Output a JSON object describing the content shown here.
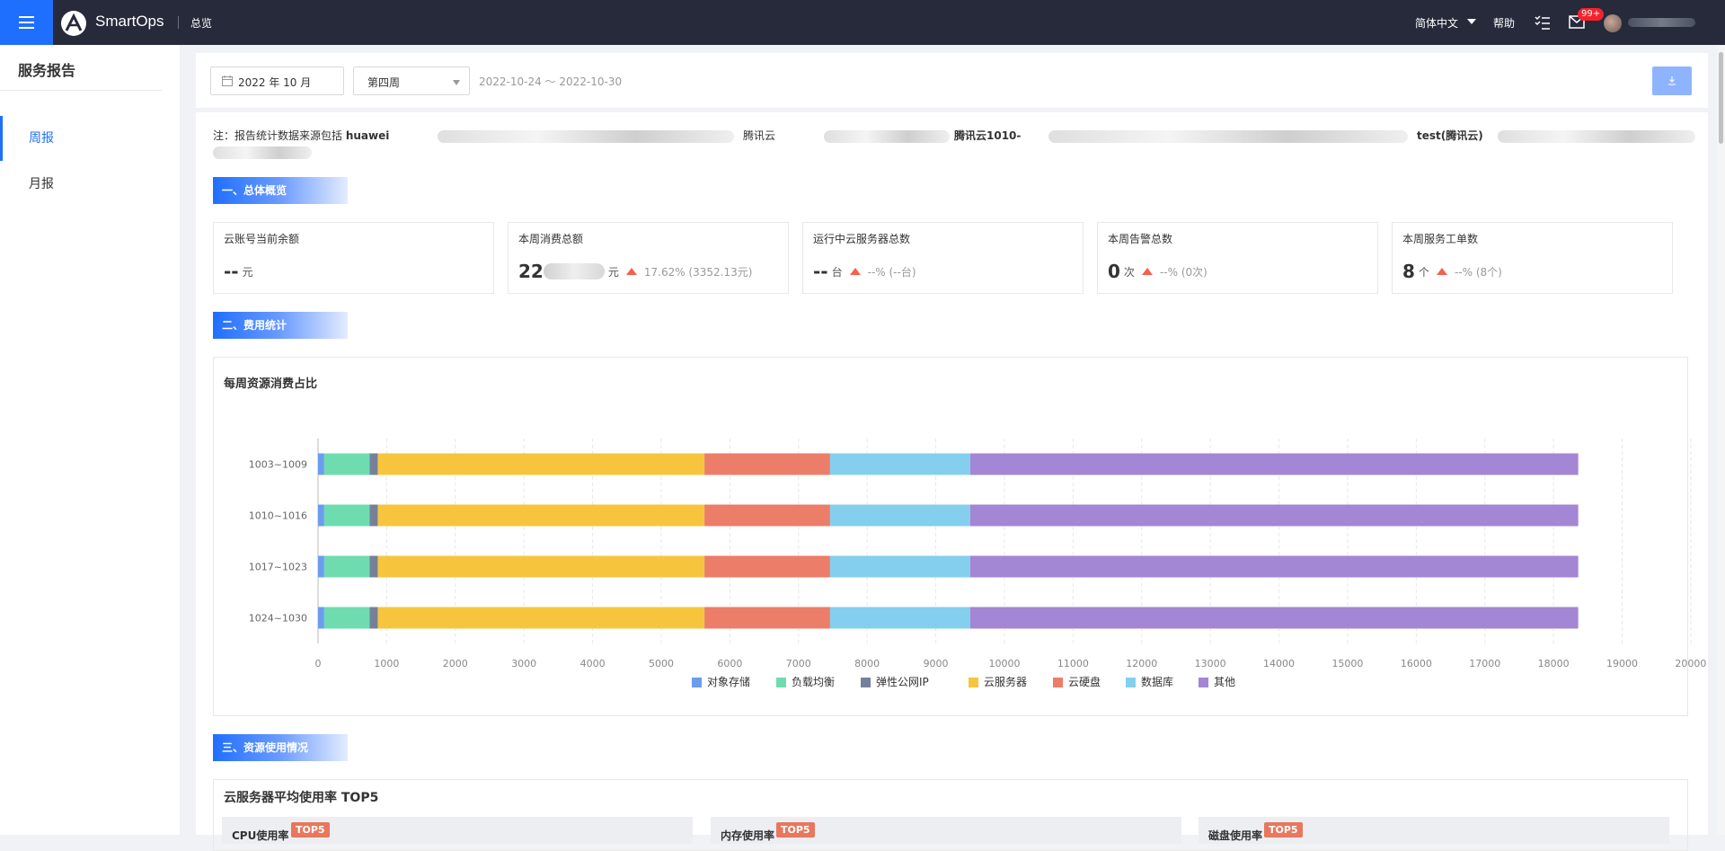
{
  "header": {
    "brand": "SmartOps",
    "nav_overview": "总览",
    "language": "简体中文",
    "help": "帮助",
    "notification_badge": "99+"
  },
  "sidebar": {
    "title": "服务报告",
    "items": [
      {
        "label": "周报",
        "active": true
      },
      {
        "label": "月报",
        "active": false
      }
    ]
  },
  "filters": {
    "month": "2022 年 10 月",
    "week": "第四周",
    "date_range": "2022-10-24 ～ 2022-10-30",
    "download_icon": "download-icon"
  },
  "note": {
    "prefix": "注：报告统计数据来源包括",
    "fragments": [
      "huawei",
      "腾讯云",
      "腾讯云1010-",
      "test(腾讯云)"
    ]
  },
  "sections": {
    "overview": "一、总体概览",
    "cost": "二、费用统计",
    "usage": "三、资源使用情况"
  },
  "stats": [
    {
      "label": "云账号当前余额",
      "value": "--",
      "unit": "元",
      "change": ""
    },
    {
      "label": "本周消费总额",
      "value": "22",
      "unit": "元",
      "change": "17.62% (3352.13元)"
    },
    {
      "label": "运行中云服务器总数",
      "value": "--",
      "unit": "台",
      "change": "--% (--台)"
    },
    {
      "label": "本周告警总数",
      "value": "0",
      "unit": "次",
      "change": "--% (0次)"
    },
    {
      "label": "本周服务工单数",
      "value": "8",
      "unit": "个",
      "change": "--% (8个)"
    }
  ],
  "chart_data": {
    "type": "bar",
    "orientation": "horizontal",
    "stacked": true,
    "title": "每周资源消费占比",
    "categories": [
      "1003~1009",
      "1010~1016",
      "1017~1023",
      "1024~1030"
    ],
    "series": [
      {
        "name": "对象存储",
        "color": "#6b9cf0",
        "values": [
          90,
          90,
          90,
          90
        ]
      },
      {
        "name": "负载均衡",
        "color": "#6fdcb0",
        "values": [
          660,
          660,
          660,
          660
        ]
      },
      {
        "name": "弹性公网IP",
        "color": "#75819a",
        "values": [
          120,
          120,
          120,
          120
        ]
      },
      {
        "name": "云服务器",
        "color": "#f7c53d",
        "values": [
          4760,
          4760,
          4760,
          4760
        ]
      },
      {
        "name": "云硬盘",
        "color": "#ec7d68",
        "values": [
          1830,
          1830,
          1830,
          1830
        ]
      },
      {
        "name": "数据库",
        "color": "#84cfee",
        "values": [
          2040,
          2040,
          2040,
          2040
        ]
      },
      {
        "name": "其他",
        "color": "#a386d4",
        "values": [
          8860,
          8860,
          8860,
          8860
        ]
      }
    ],
    "xlim": [
      0,
      20000
    ],
    "xticks": [
      0,
      1000,
      2000,
      3000,
      4000,
      5000,
      6000,
      7000,
      8000,
      9000,
      10000,
      11000,
      12000,
      13000,
      14000,
      15000,
      16000,
      17000,
      18000,
      19000,
      20000
    ],
    "grid": true,
    "legend": "bottom"
  },
  "usage": {
    "title": "云服务器平均使用率 TOP5",
    "tag": "TOP5",
    "panels": [
      "CPU使用率",
      "内存使用率",
      "磁盘使用率"
    ]
  }
}
